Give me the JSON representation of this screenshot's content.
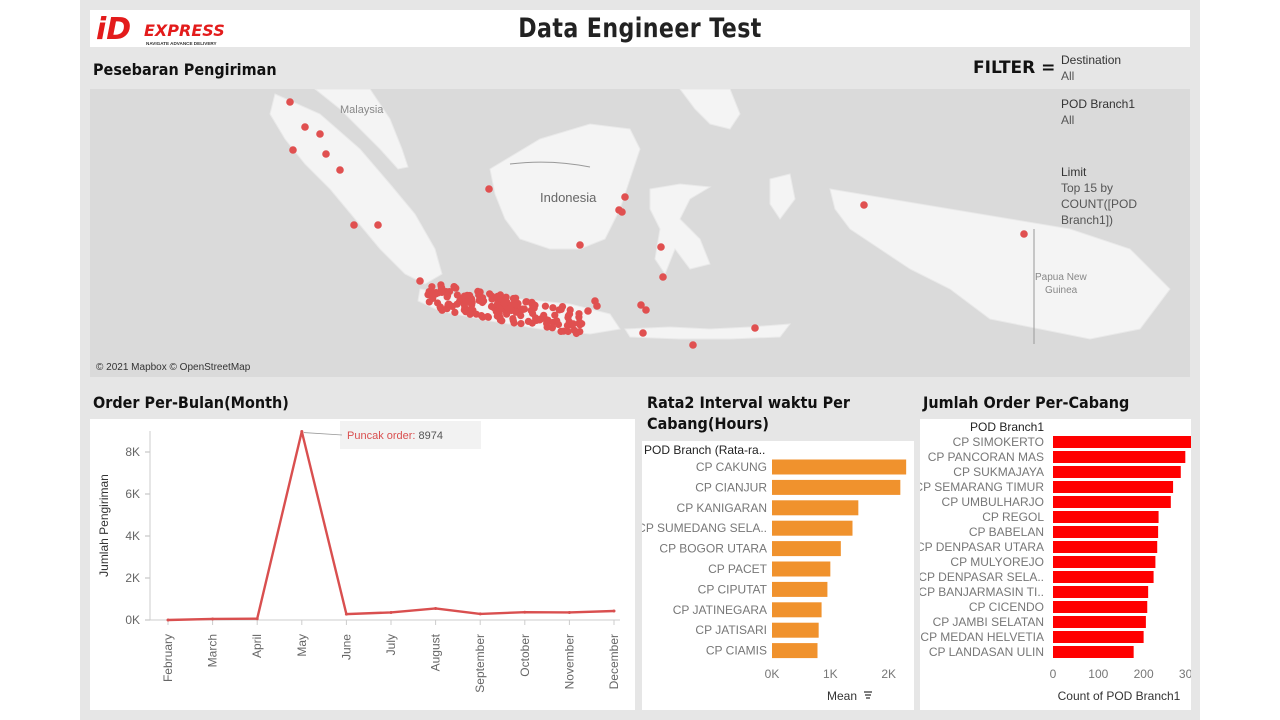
{
  "header": {
    "title": "Data Engineer Test",
    "logo_text": "EXPRESS",
    "logo_tagline": "NAVIGATE ADVANCE DELIVERY",
    "logo_mark": "iD"
  },
  "map_section": {
    "title": "Pesebaran Pengiriman",
    "labels": {
      "malaysia": "Malaysia",
      "indonesia": "Indonesia",
      "png": "Papua New\nGuinea"
    },
    "attribution": "© 2021 Mapbox © OpenStreetMap",
    "point_color": "#e05050"
  },
  "filters": {
    "label": "FILTER =",
    "destination": {
      "name": "Destination",
      "value": "All"
    },
    "pod_branch": {
      "name": "POD Branch1",
      "value": "All"
    },
    "limit": {
      "name": "Limit",
      "value": "Top 15 by COUNT([POD Branch1])"
    }
  },
  "line_section": {
    "title": "Order Per-Bulan(Month)",
    "annotation_label": "Puncak order:",
    "annotation_value": "8974"
  },
  "bar1_section": {
    "title_line1": "Rata2 Interval waktu Per",
    "title_line2": "Cabang(Hours)",
    "column_header": "POD Branch (Rata-ra..",
    "axis_label": "Mean"
  },
  "bar2_section": {
    "title": "Jumlah Order Per-Cabang",
    "column_header": "POD Branch1",
    "axis_label": "Count of POD Branch1"
  },
  "chart_data": [
    {
      "type": "line",
      "ylabel": "Jumlah Pengiriman",
      "x": [
        "February",
        "March",
        "April",
        "May",
        "June",
        "July",
        "August",
        "September",
        "October",
        "November",
        "December"
      ],
      "series": [
        {
          "values": [
            0,
            50,
            60,
            8974,
            280,
            360,
            550,
            290,
            370,
            360,
            430
          ]
        }
      ],
      "ylim": [
        0,
        9000
      ],
      "yticks": [
        0,
        2000,
        4000,
        6000,
        8000
      ],
      "ytick_labels": [
        "0K",
        "2K",
        "4K",
        "6K",
        "8K"
      ],
      "color": "#d94f4f"
    },
    {
      "type": "bar",
      "orientation": "horizontal",
      "categories": [
        "CP CAKUNG",
        "CP CIANJUR",
        "CP KANIGARAN",
        "CP SUMEDANG SELA..",
        "CP BOGOR UTARA",
        "CP PACET",
        "CP CIPUTAT",
        "CP JATINEGARA",
        "CP JATISARI",
        "CP CIAMIS"
      ],
      "values": [
        2300,
        2200,
        1480,
        1380,
        1180,
        1000,
        950,
        850,
        800,
        780
      ],
      "xlim": [
        0,
        2400
      ],
      "xticks": [
        0,
        1000,
        2000
      ],
      "xtick_labels": [
        "0K",
        "1K",
        "2K"
      ],
      "xlabel": "Mean",
      "color": "#f0922d"
    },
    {
      "type": "bar",
      "orientation": "horizontal",
      "categories": [
        "CP SIMOKERTO",
        "CP PANCORAN MAS",
        "CP SUKMAJAYA",
        "CP SEMARANG TIMUR",
        "CP UMBULHARJO",
        "CP REGOL",
        "CP BABELAN",
        "CP DENPASAR UTARA",
        "CP MULYOREJO",
        "CP DENPASAR SELA..",
        "CP BANJARMASIN TI..",
        "CP CICENDO",
        "CP JAMBI SELATAN",
        "CP MEDAN HELVETIA",
        "CP LANDASAN ULIN"
      ],
      "values": [
        305,
        292,
        282,
        265,
        260,
        233,
        232,
        230,
        226,
        222,
        210,
        208,
        205,
        200,
        178
      ],
      "xlim": [
        0,
        320
      ],
      "xticks": [
        0,
        100,
        200,
        300
      ],
      "xtick_labels": [
        "0",
        "100",
        "200",
        "300"
      ],
      "xlabel": "Count of POD Branch1",
      "color": "#ff0000"
    }
  ]
}
